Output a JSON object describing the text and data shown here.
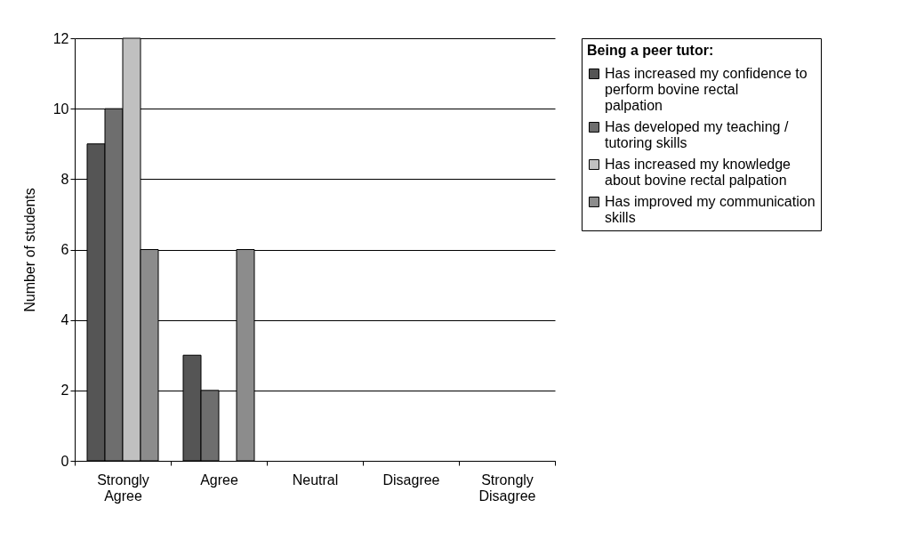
{
  "chart_data": {
    "type": "bar",
    "ylabel": "Number of students",
    "legend_title": "Being a peer tutor:",
    "categories": [
      "Strongly Agree",
      "Agree",
      "Neutral",
      "Disagree",
      "Strongly Disagree"
    ],
    "series": [
      {
        "name": "Has increased my confidence to perform bovine rectal palpation",
        "color": "#555555",
        "values": [
          9,
          3,
          0,
          0,
          0
        ]
      },
      {
        "name": "Has developed my teaching / tutoring skills",
        "color": "#6e6e6e",
        "values": [
          10,
          2,
          0,
          0,
          0
        ]
      },
      {
        "name": "Has increased my knowledge about  bovine rectal palpation",
        "color": "#c0c0c0",
        "values": [
          12,
          0,
          0,
          0,
          0
        ]
      },
      {
        "name": "Has improved my communication skills",
        "color": "#8c8c8c",
        "values": [
          6,
          6,
          0,
          0,
          0
        ]
      }
    ],
    "ylim": [
      0,
      12
    ],
    "yticks": [
      0,
      2,
      4,
      6,
      8,
      10,
      12
    ],
    "grid": "y",
    "legend": "right"
  }
}
